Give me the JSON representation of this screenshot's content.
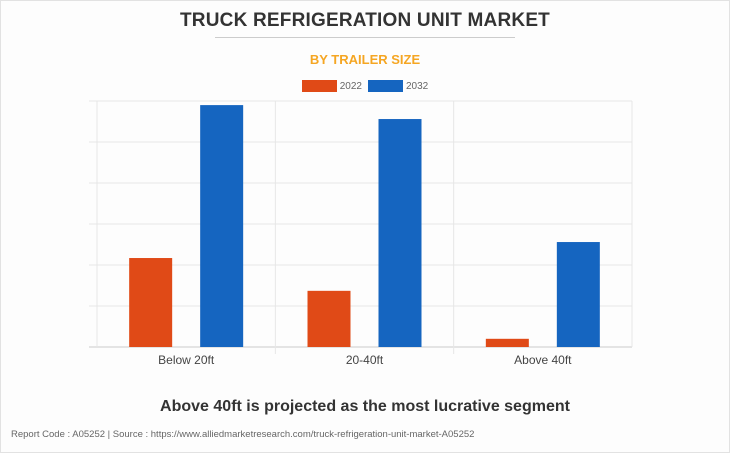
{
  "chart_data": {
    "type": "bar",
    "title": "TRUCK REFRIGERATION UNIT MARKET",
    "subtitle": "BY TRAILER SIZE",
    "categories": [
      "Below 20ft",
      "20-40ft",
      "Above 40ft"
    ],
    "series": [
      {
        "name": "2022",
        "color": "#e04a17",
        "values": [
          2.17,
          1.37,
          0.2
        ]
      },
      {
        "name": "2032",
        "color": "#1565c0",
        "values": [
          5.9,
          5.56,
          2.56
        ]
      }
    ],
    "ylim": [
      0,
      6
    ],
    "grid": true,
    "legend": "top-center",
    "xlabel": "",
    "ylabel": ""
  },
  "caption": "Above 40ft is projected as the most lucrative segment",
  "footer": "Report Code : A05252  |  Source : https://www.alliedmarketresearch.com/truck-refrigeration-unit-market-A05252"
}
